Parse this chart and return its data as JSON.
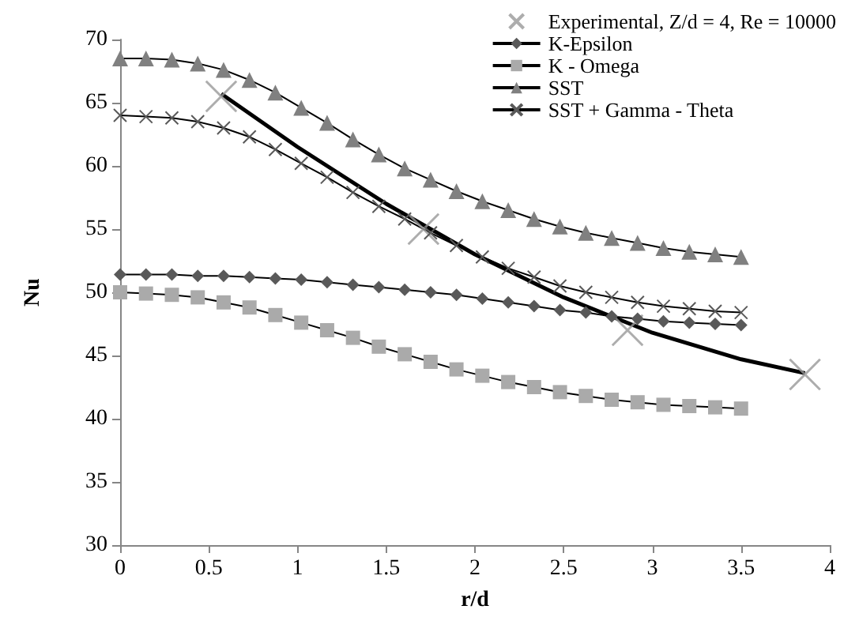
{
  "chart_data": {
    "type": "line",
    "xlabel": "r/d",
    "ylabel": "Nu",
    "x": [
      0,
      0.1458,
      0.2917,
      0.4375,
      0.5833,
      0.7292,
      0.875,
      1.0208,
      1.1667,
      1.3125,
      1.4583,
      1.6042,
      1.75,
      1.8958,
      2.0417,
      2.1875,
      2.3333,
      2.4792,
      2.625,
      2.7708,
      2.9167,
      3.0625,
      3.2083,
      3.3542,
      3.5
    ],
    "series": [
      {
        "name": "Experimental, Z/d = 4, Re = 10000",
        "type": "scatter",
        "marker": "cross",
        "color": "#999999",
        "x": [
          0.57,
          1.71,
          2.86,
          3.86
        ],
        "values": [
          65.5,
          55,
          47,
          43.5
        ]
      },
      {
        "name": "K-Epsilon",
        "marker": "diamond",
        "color": "#595959",
        "values": [
          51.4,
          51.4,
          51.4,
          51.3,
          51.3,
          51.2,
          51.1,
          51.0,
          50.8,
          50.6,
          50.4,
          50.2,
          50.0,
          49.8,
          49.5,
          49.2,
          48.9,
          48.6,
          48.4,
          48.1,
          47.9,
          47.7,
          47.6,
          47.5,
          47.4
        ]
      },
      {
        "name": "K - Omega",
        "marker": "square",
        "color": "#aaaaaa",
        "values": [
          50,
          49.9,
          49.8,
          49.6,
          49.2,
          48.8,
          48.2,
          47.6,
          47.0,
          46.4,
          45.7,
          45.1,
          44.5,
          43.9,
          43.4,
          42.9,
          42.5,
          42.1,
          41.8,
          41.5,
          41.3,
          41.1,
          41.0,
          40.9,
          40.8
        ]
      },
      {
        "name": "SST",
        "marker": "triangle",
        "color": "#808080",
        "values": [
          68.5,
          68.5,
          68.4,
          68.1,
          67.6,
          66.8,
          65.8,
          64.6,
          63.4,
          62.1,
          60.9,
          59.8,
          58.9,
          58.0,
          57.2,
          56.5,
          55.8,
          55.2,
          54.7,
          54.3,
          53.9,
          53.5,
          53.2,
          53.0,
          52.8
        ]
      },
      {
        "name": "SST + Gamma - Theta",
        "marker": "cross",
        "color": "#595959",
        "values": [
          64,
          63.9,
          63.8,
          63.5,
          63.0,
          62.3,
          61.3,
          60.2,
          59.1,
          57.9,
          56.8,
          55.8,
          54.7,
          53.7,
          52.8,
          51.9,
          51.2,
          50.5,
          50.0,
          49.6,
          49.2,
          48.9,
          48.7,
          48.5,
          48.4
        ]
      },
      {
        "type": "line",
        "marker": "none",
        "color": "#000000",
        "x": [
          0.57,
          1.0,
          1.5,
          2.0,
          2.5,
          3.0,
          3.5,
          3.86
        ],
        "values": [
          65.7,
          61.5,
          57.0,
          53.0,
          49.6,
          46.8,
          44.7,
          43.6
        ]
      }
    ],
    "xlim": [
      0,
      4
    ],
    "xticks": [
      0,
      0.5,
      1,
      1.5,
      2,
      2.5,
      3,
      3.5,
      4
    ],
    "ylim": [
      30,
      70
    ],
    "yticks": [
      30,
      35,
      40,
      45,
      50,
      55,
      60,
      65,
      70
    ],
    "grid": false,
    "legend": "top right"
  }
}
